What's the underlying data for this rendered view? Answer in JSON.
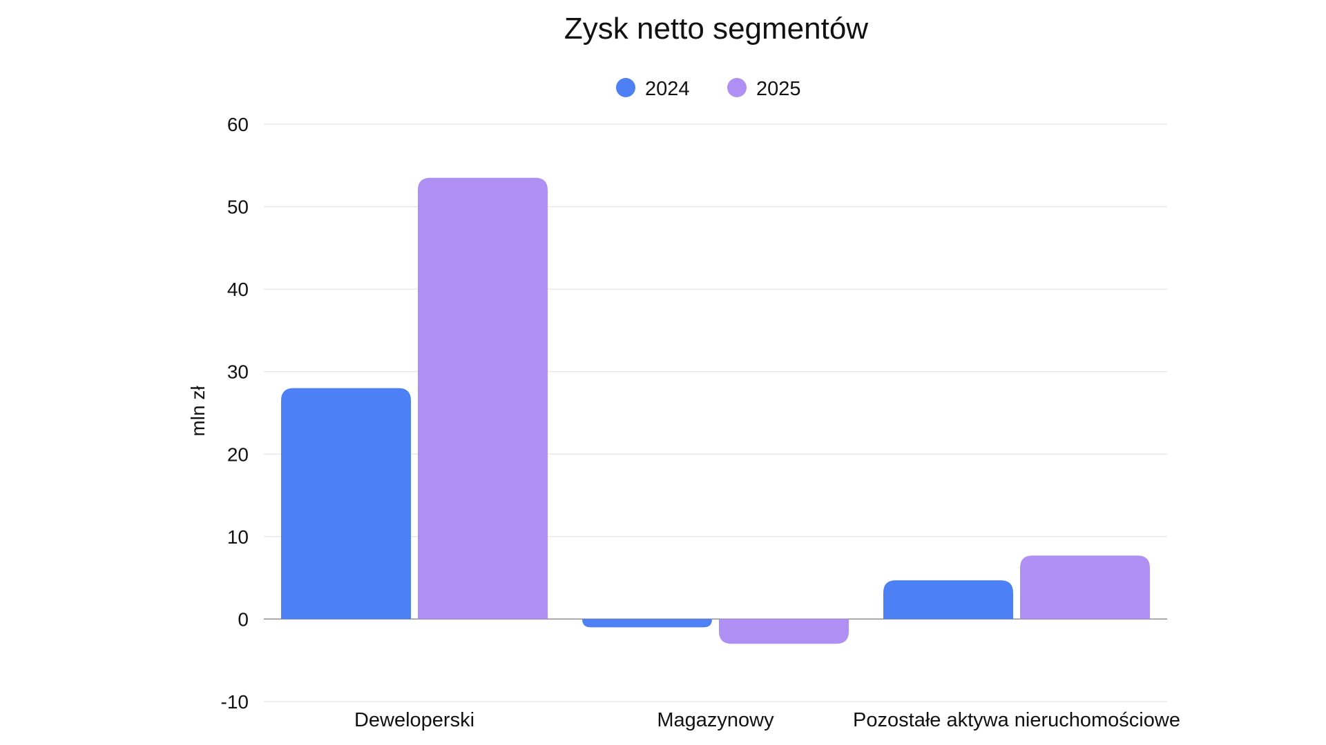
{
  "chart_data": {
    "type": "bar",
    "title": "Zysk netto segmentów",
    "xlabel": "",
    "ylabel": "mln zł",
    "categories": [
      "Deweloperski",
      "Magazynowy",
      "Pozostałe aktywa nieruchomościowe"
    ],
    "series": [
      {
        "name": "2024",
        "color": "#4E80F5",
        "values": [
          28,
          -1,
          4.7
        ]
      },
      {
        "name": "2025",
        "color": "#AF8FF4",
        "values": [
          53.5,
          -3,
          7.7
        ]
      }
    ],
    "ylim": [
      -10,
      60
    ],
    "yticks": [
      -10,
      0,
      10,
      20,
      30,
      40,
      50,
      60
    ],
    "grid": true,
    "legend_position": "top-center"
  }
}
